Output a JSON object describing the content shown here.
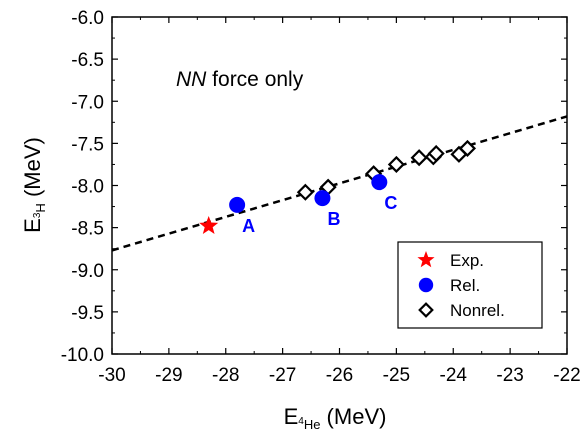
{
  "chart_data": {
    "type": "scatter",
    "annotation": {
      "italic": "NN",
      "rest": " force only"
    },
    "xlabel": {
      "main": "E",
      "sub": "4",
      "subtail": "He",
      "unit": " (MeV)"
    },
    "ylabel": {
      "main": "E",
      "sub": "3",
      "subtail": "H",
      "unit": " (MeV)"
    },
    "xlim": [
      -30,
      -22
    ],
    "ylim": [
      -10.0,
      -6.0
    ],
    "x_ticks": [
      -30,
      -29,
      -28,
      -27,
      -26,
      -25,
      -24,
      -23,
      -22
    ],
    "x_tick_labels": [
      "-30",
      "-29",
      "-28",
      "-27",
      "-26",
      "-25",
      "-24",
      "-23",
      "-22"
    ],
    "y_ticks": [
      -6.0,
      -6.5,
      -7.0,
      -7.5,
      -8.0,
      -8.5,
      -9.0,
      -9.5,
      -10.0
    ],
    "y_tick_labels": [
      "-6.0",
      "-6.5",
      "-7.0",
      "-7.5",
      "-8.0",
      "-8.5",
      "-9.0",
      "-9.5",
      "-10.0"
    ],
    "fit_line": {
      "x": [
        -30,
        -22
      ],
      "y": [
        -8.77,
        -7.18
      ]
    },
    "series": [
      {
        "name": "Exp.",
        "marker": "star",
        "color": "#ff0000",
        "points": [
          {
            "x": -28.3,
            "y": -8.48
          }
        ]
      },
      {
        "name": "Rel.",
        "marker": "circle",
        "color": "#0000ff",
        "points": [
          {
            "x": -27.8,
            "y": -8.23,
            "label": "A"
          },
          {
            "x": -26.3,
            "y": -8.15,
            "label": "B"
          },
          {
            "x": -25.3,
            "y": -7.96,
            "label": "C"
          }
        ]
      },
      {
        "name": "Nonrel.",
        "marker": "diamond",
        "color": "#000000",
        "points": [
          {
            "x": -26.6,
            "y": -8.08
          },
          {
            "x": -26.2,
            "y": -8.02
          },
          {
            "x": -25.4,
            "y": -7.86
          },
          {
            "x": -25.0,
            "y": -7.75
          },
          {
            "x": -24.6,
            "y": -7.67
          },
          {
            "x": -24.35,
            "y": -7.66
          },
          {
            "x": -24.3,
            "y": -7.62
          },
          {
            "x": -23.9,
            "y": -7.63
          },
          {
            "x": -23.75,
            "y": -7.56
          }
        ]
      }
    ],
    "legend": {
      "placement": "bottom-right",
      "entries": [
        "Exp.",
        "Rel.",
        "Nonrel."
      ]
    },
    "grid": false
  }
}
